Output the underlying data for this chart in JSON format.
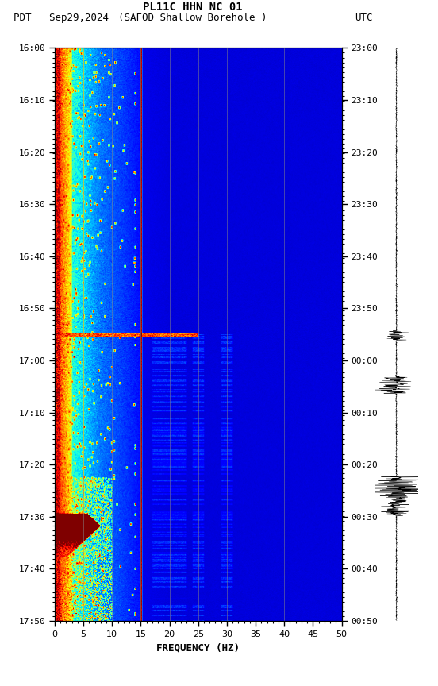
{
  "title_line1": "PL11C HHN NC 01",
  "title_line2_left": "PDT   Sep29,2024",
  "title_line2_center": "(SAFOD Shallow Borehole )",
  "title_line2_right": "UTC",
  "xlabel": "FREQUENCY (HZ)",
  "freq_min": 0,
  "freq_max": 50,
  "freq_ticks": [
    0,
    5,
    10,
    15,
    20,
    25,
    30,
    35,
    40,
    45,
    50
  ],
  "time_labels_left": [
    "16:00",
    "16:10",
    "16:20",
    "16:30",
    "16:40",
    "16:50",
    "17:00",
    "17:10",
    "17:20",
    "17:30",
    "17:40",
    "17:50"
  ],
  "time_labels_right": [
    "23:00",
    "23:10",
    "23:20",
    "23:30",
    "23:40",
    "23:50",
    "00:00",
    "00:10",
    "00:20",
    "00:30",
    "00:40",
    "00:50"
  ],
  "n_time_steps": 720,
  "n_freq_steps": 500,
  "figsize": [
    5.52,
    8.64
  ],
  "dpi": 100,
  "grid_lines_hz": [
    5,
    10,
    15,
    20,
    25,
    30,
    35,
    40,
    45
  ],
  "white_line_hz": 15
}
